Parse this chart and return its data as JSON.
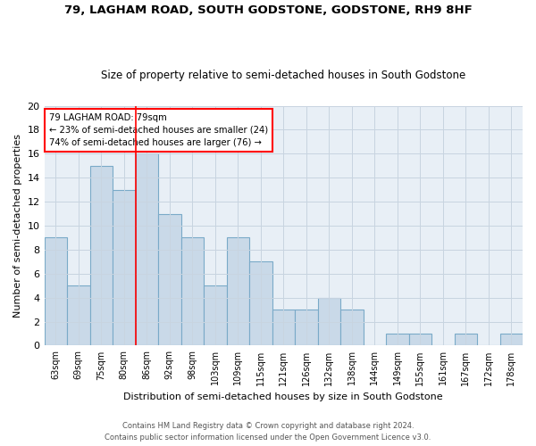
{
  "title1": "79, LAGHAM ROAD, SOUTH GODSTONE, GODSTONE, RH9 8HF",
  "title2": "Size of property relative to semi-detached houses in South Godstone",
  "xlabel": "Distribution of semi-detached houses by size in South Godstone",
  "ylabel": "Number of semi-detached properties",
  "categories": [
    "63sqm",
    "69sqm",
    "75sqm",
    "80sqm",
    "86sqm",
    "92sqm",
    "98sqm",
    "103sqm",
    "109sqm",
    "115sqm",
    "121sqm",
    "126sqm",
    "132sqm",
    "138sqm",
    "144sqm",
    "149sqm",
    "155sqm",
    "161sqm",
    "167sqm",
    "172sqm",
    "178sqm"
  ],
  "values": [
    9,
    5,
    15,
    13,
    16,
    11,
    9,
    5,
    9,
    7,
    3,
    3,
    4,
    3,
    0,
    1,
    1,
    0,
    1,
    0,
    1
  ],
  "bar_color": "#c9d9e8",
  "bar_edge_color": "#7aaac8",
  "vline_x_index": 3,
  "vline_color": "red",
  "annotation_text": "79 LAGHAM ROAD: 79sqm\n← 23% of semi-detached houses are smaller (24)\n74% of semi-detached houses are larger (76) →",
  "annotation_box_color": "white",
  "annotation_box_edge_color": "red",
  "ylim": [
    0,
    20
  ],
  "yticks": [
    0,
    2,
    4,
    6,
    8,
    10,
    12,
    14,
    16,
    18,
    20
  ],
  "footer1": "Contains HM Land Registry data © Crown copyright and database right 2024.",
  "footer2": "Contains public sector information licensed under the Open Government Licence v3.0.",
  "grid_color": "#c8d4e0",
  "background_color": "#e8eff6"
}
